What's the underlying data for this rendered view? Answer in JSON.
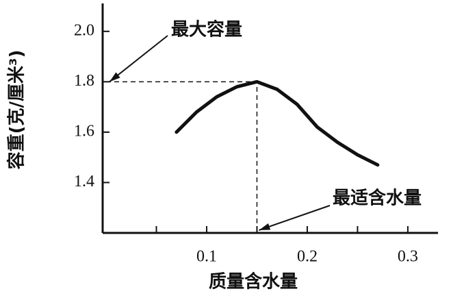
{
  "chart_data": {
    "type": "line",
    "x_label": "质量含水量",
    "y_label": "容重(克/厘米³)",
    "x": [
      0.07,
      0.09,
      0.11,
      0.13,
      0.15,
      0.17,
      0.19,
      0.21,
      0.23,
      0.25,
      0.27
    ],
    "series": [
      {
        "color": "#111111",
        "values": [
          1.6,
          1.68,
          1.74,
          1.78,
          1.8,
          1.77,
          1.71,
          1.62,
          1.56,
          1.51,
          1.47
        ]
      }
    ],
    "xlim": [
      0,
      0.33
    ],
    "ylim": [
      1.2,
      2.1
    ],
    "xticks": [
      0.1,
      0.2,
      0.3
    ],
    "xminor_ticks": [
      0.05,
      0.15,
      0.25
    ],
    "yticks": [
      {
        "value": 2,
        "label": "2.0"
      },
      1.8,
      1.6,
      1.4
    ],
    "annotations": [
      {
        "text": "最大容量",
        "x": 0,
        "y": 1.8
      },
      {
        "text": "最适含水量",
        "x": 0.15,
        "y": 1.2
      }
    ],
    "reference_point": {
      "x": 0.15,
      "y": 1.8
    }
  }
}
